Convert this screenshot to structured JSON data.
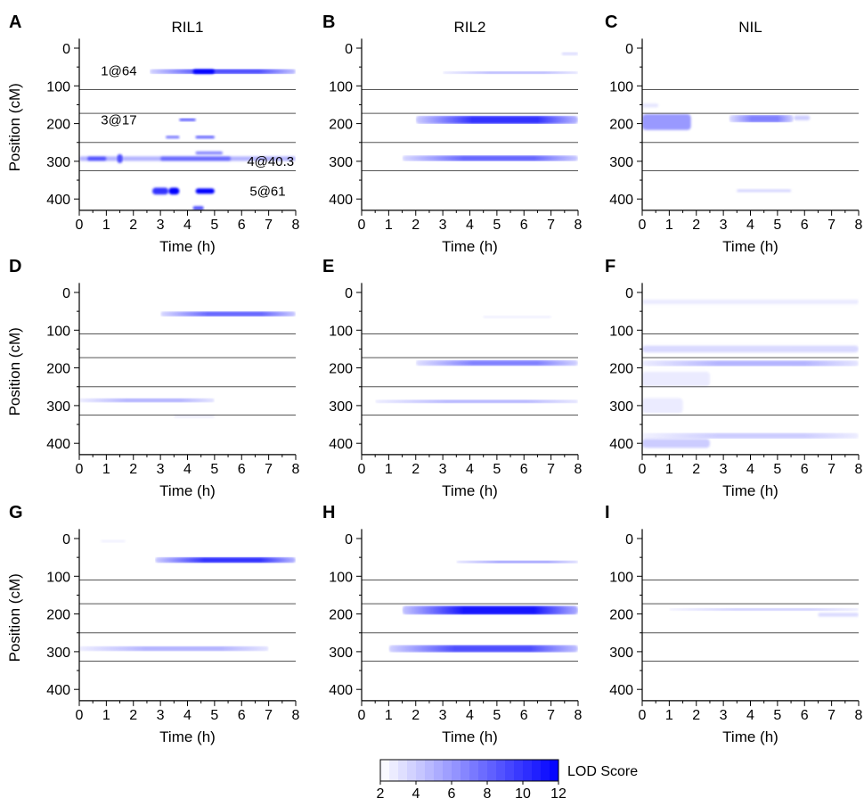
{
  "chart_data": {
    "type": "heatmap",
    "columns": [
      "RIL1",
      "RIL2",
      "NIL"
    ],
    "xlabel": "Time (h)",
    "ylabel": "Position (cM)",
    "xlim": [
      0,
      8
    ],
    "ylim": [
      430,
      0
    ],
    "x_ticks": [
      0,
      1,
      2,
      3,
      4,
      5,
      6,
      7,
      8
    ],
    "y_ticks": [
      0,
      100,
      200,
      300,
      400
    ],
    "chromosome_boundaries": [
      110,
      173,
      250,
      325
    ],
    "colorbar": {
      "label": "LOD Score",
      "min": 2,
      "max": 12,
      "ticks": [
        2,
        4,
        6,
        8,
        10,
        12
      ],
      "color_low": "#ffffff",
      "color_high": "#0000ff"
    },
    "panels": [
      {
        "letter": "A",
        "column_title": "RIL1",
        "show_ylabel": true,
        "annotations": [
          {
            "text": "1@64",
            "x": 0.8,
            "y": 60
          },
          {
            "text": "3@17",
            "x": 0.8,
            "y": 190
          },
          {
            "text": "4@40.3",
            "x": 6.2,
            "y": 300
          },
          {
            "text": "5@61",
            "x": 6.3,
            "y": 380
          }
        ],
        "blobs": [
          {
            "x0": 2.6,
            "x1": 8.0,
            "y": 62,
            "h": 14,
            "lod": 9,
            "style": "tapered"
          },
          {
            "x0": 4.2,
            "x1": 5.0,
            "y": 62,
            "h": 12,
            "lod": 12
          },
          {
            "x0": 3.7,
            "x1": 4.3,
            "y": 190,
            "h": 5,
            "lod": 11
          },
          {
            "x0": 3.2,
            "x1": 3.7,
            "y": 236,
            "h": 6,
            "lod": 8
          },
          {
            "x0": 4.3,
            "x1": 5.0,
            "y": 236,
            "h": 6,
            "lod": 9
          },
          {
            "x0": 0.0,
            "x1": 8.0,
            "y": 293,
            "h": 12,
            "lod": 5
          },
          {
            "x0": 0.3,
            "x1": 1.0,
            "y": 293,
            "h": 10,
            "lod": 9
          },
          {
            "x0": 1.4,
            "x1": 1.6,
            "y": 293,
            "h": 24,
            "lod": 9
          },
          {
            "x0": 3.0,
            "x1": 5.6,
            "y": 293,
            "h": 10,
            "lod": 8
          },
          {
            "x0": 4.3,
            "x1": 5.3,
            "y": 278,
            "h": 8,
            "lod": 7
          },
          {
            "x0": 2.7,
            "x1": 3.3,
            "y": 379,
            "h": 18,
            "lod": 10
          },
          {
            "x0": 3.3,
            "x1": 3.7,
            "y": 379,
            "h": 18,
            "lod": 12
          },
          {
            "x0": 4.3,
            "x1": 5.0,
            "y": 379,
            "h": 14,
            "lod": 12
          },
          {
            "x0": 4.2,
            "x1": 4.6,
            "y": 424,
            "h": 10,
            "lod": 9
          }
        ]
      },
      {
        "letter": "B",
        "column_title": "RIL2",
        "show_ylabel": false,
        "annotations": [],
        "blobs": [
          {
            "x0": 3.0,
            "x1": 8.0,
            "y": 65,
            "h": 8,
            "lod": 5,
            "style": "tapered"
          },
          {
            "x0": 7.4,
            "x1": 8.0,
            "y": 15,
            "h": 5,
            "lod": 4
          },
          {
            "x0": 2.0,
            "x1": 8.0,
            "y": 190,
            "h": 22,
            "lod": 10,
            "style": "tapered"
          },
          {
            "x0": 1.5,
            "x1": 8.0,
            "y": 292,
            "h": 16,
            "lod": 8,
            "style": "tapered"
          }
        ]
      },
      {
        "letter": "C",
        "column_title": "NIL",
        "show_ylabel": false,
        "annotations": [],
        "blobs": [
          {
            "x0": 0.0,
            "x1": 1.8,
            "y": 196,
            "h": 42,
            "lod": 6
          },
          {
            "x0": 3.2,
            "x1": 5.6,
            "y": 187,
            "h": 20,
            "lod": 7,
            "style": "tapered"
          },
          {
            "x0": 5.6,
            "x1": 6.2,
            "y": 185,
            "h": 12,
            "lod": 4
          },
          {
            "x0": 3.5,
            "x1": 5.5,
            "y": 378,
            "h": 6,
            "lod": 4
          },
          {
            "x0": 0.0,
            "x1": 0.6,
            "y": 152,
            "h": 10,
            "lod": 3
          }
        ]
      },
      {
        "letter": "D",
        "column_title": "",
        "show_ylabel": true,
        "annotations": [],
        "blobs": [
          {
            "x0": 3.0,
            "x1": 8.0,
            "y": 57,
            "h": 14,
            "lod": 8,
            "style": "tapered"
          },
          {
            "x0": 0.0,
            "x1": 5.0,
            "y": 286,
            "h": 12,
            "lod": 5,
            "style": "tapered"
          },
          {
            "x0": 3.5,
            "x1": 5.0,
            "y": 328,
            "h": 6,
            "lod": 3
          }
        ]
      },
      {
        "letter": "E",
        "column_title": "",
        "show_ylabel": false,
        "annotations": [],
        "blobs": [
          {
            "x0": 2.0,
            "x1": 8.0,
            "y": 187,
            "h": 16,
            "lod": 7,
            "style": "tapered"
          },
          {
            "x0": 0.5,
            "x1": 8.0,
            "y": 289,
            "h": 10,
            "lod": 5,
            "style": "tapered"
          },
          {
            "x0": 4.5,
            "x1": 7.0,
            "y": 65,
            "h": 4,
            "lod": 3
          }
        ]
      },
      {
        "letter": "F",
        "column_title": "",
        "show_ylabel": false,
        "annotations": [],
        "blobs": [
          {
            "x0": 0.0,
            "x1": 8.0,
            "y": 25,
            "h": 12,
            "lod": 2.8
          },
          {
            "x0": 0.0,
            "x1": 8.0,
            "y": 150,
            "h": 18,
            "lod": 3.5
          },
          {
            "x0": 0.0,
            "x1": 8.0,
            "y": 188,
            "h": 16,
            "lod": 5,
            "style": "tapered"
          },
          {
            "x0": 0.0,
            "x1": 2.5,
            "y": 230,
            "h": 40,
            "lod": 2.8
          },
          {
            "x0": 0.0,
            "x1": 1.5,
            "y": 300,
            "h": 40,
            "lod": 2.8
          },
          {
            "x0": 0.0,
            "x1": 8.0,
            "y": 380,
            "h": 16,
            "lod": 4,
            "style": "tapered"
          },
          {
            "x0": 0.0,
            "x1": 2.5,
            "y": 400,
            "h": 24,
            "lod": 4
          }
        ]
      },
      {
        "letter": "G",
        "column_title": "",
        "show_ylabel": true,
        "annotations": [],
        "blobs": [
          {
            "x0": 2.8,
            "x1": 8.0,
            "y": 57,
            "h": 16,
            "lod": 10,
            "style": "tapered"
          },
          {
            "x0": 0.0,
            "x1": 7.0,
            "y": 292,
            "h": 14,
            "lod": 5,
            "style": "tapered"
          },
          {
            "x0": 0.8,
            "x1": 1.7,
            "y": 7,
            "h": 4,
            "lod": 3
          }
        ]
      },
      {
        "letter": "H",
        "column_title": "",
        "show_ylabel": false,
        "annotations": [],
        "blobs": [
          {
            "x0": 3.5,
            "x1": 8.0,
            "y": 62,
            "h": 8,
            "lod": 6,
            "style": "tapered"
          },
          {
            "x0": 1.5,
            "x1": 8.0,
            "y": 190,
            "h": 24,
            "lod": 11,
            "style": "tapered"
          },
          {
            "x0": 1.0,
            "x1": 8.0,
            "y": 292,
            "h": 20,
            "lod": 9,
            "style": "tapered"
          }
        ]
      },
      {
        "letter": "I",
        "column_title": "",
        "show_ylabel": false,
        "annotations": [],
        "blobs": [
          {
            "x0": 1.0,
            "x1": 8.0,
            "y": 188,
            "h": 8,
            "lod": 4,
            "style": "tapered"
          },
          {
            "x0": 6.5,
            "x1": 8.0,
            "y": 202,
            "h": 10,
            "lod": 3.5
          }
        ]
      }
    ]
  }
}
